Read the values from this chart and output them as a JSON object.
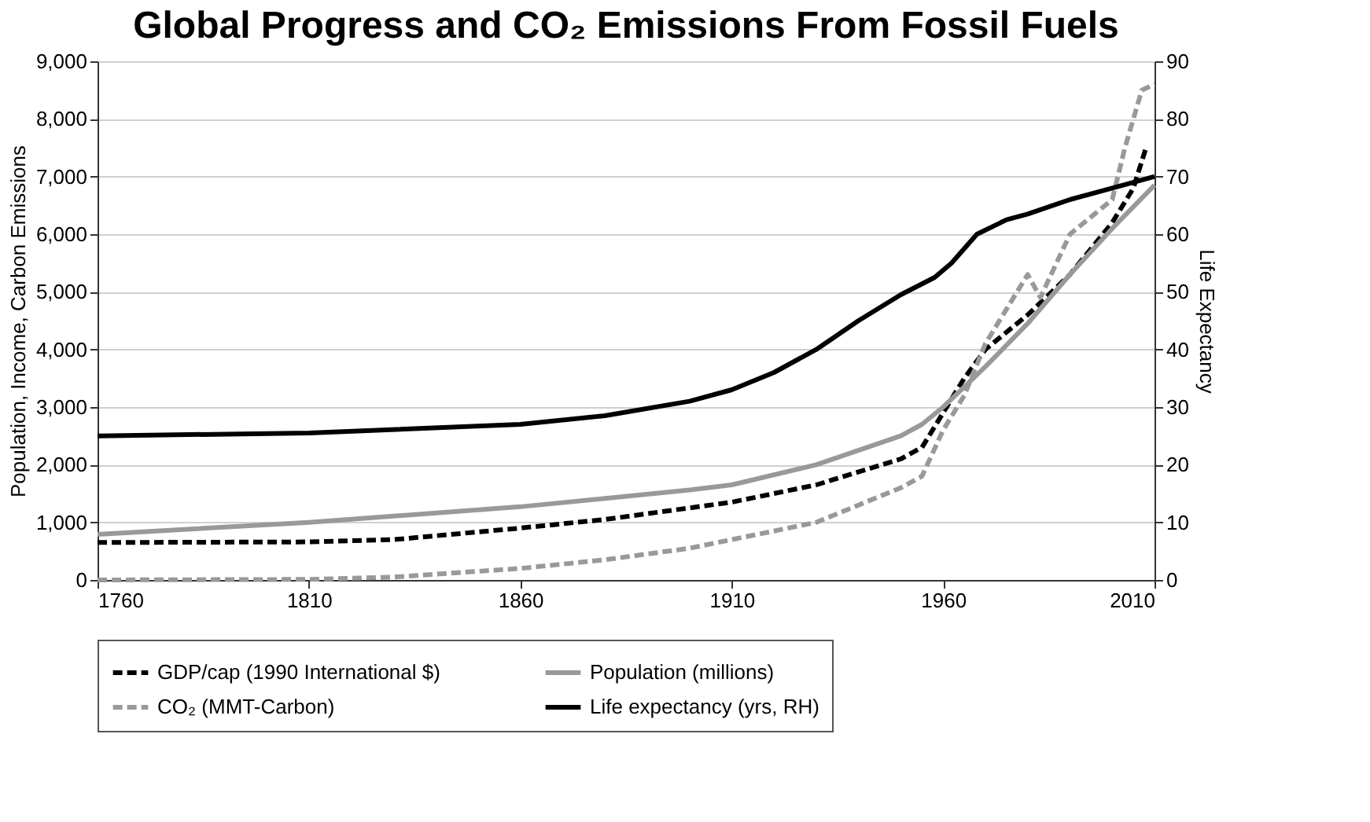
{
  "chart_data": {
    "type": "line",
    "title": "Global Progress and CO₂ Emissions From Fossil Fuels",
    "ylabel": "Population, Income, Carbon Emissions",
    "y2label": "Life Expectancy",
    "xlim": [
      1760,
      2010
    ],
    "xticks": [
      1760,
      1810,
      1860,
      1910,
      1960,
      2010
    ],
    "ylim": [
      0,
      9000
    ],
    "yticks": [
      0,
      {
        "value": 1000,
        "label": "1,000"
      },
      {
        "value": 2000,
        "label": "2,000"
      },
      {
        "value": 3000,
        "label": "3,000"
      },
      {
        "value": 4000,
        "label": "4,000"
      },
      {
        "value": 5000,
        "label": "5,000"
      },
      {
        "value": 6000,
        "label": "6,000"
      },
      {
        "value": 7000,
        "label": "7,000"
      },
      {
        "value": 8000,
        "label": "8,000"
      },
      {
        "value": 9000,
        "label": "9,000"
      }
    ],
    "y2lim": [
      0,
      90
    ],
    "y2ticks": [
      0,
      10,
      20,
      30,
      40,
      50,
      60,
      70,
      80,
      90
    ],
    "grid": "y",
    "legend": "bottom",
    "marker": "none",
    "series": [
      {
        "name": "GDP/cap (1990 International $)",
        "color": "#000000",
        "line_style": "dashed",
        "x": [
          1760,
          1810,
          1830,
          1860,
          1880,
          1900,
          1910,
          1930,
          1950,
          1955,
          1960,
          1965,
          1970,
          1980,
          1990,
          2000,
          2005,
          2008
        ],
        "values": [
          650,
          660,
          700,
          900,
          1050,
          1250,
          1350,
          1650,
          2100,
          2300,
          2900,
          3500,
          4000,
          4600,
          5300,
          6200,
          6800,
          7500
        ]
      },
      {
        "name": "Population (millions)",
        "color": "#999999",
        "line_style": "solid",
        "x": [
          1760,
          1810,
          1860,
          1900,
          1910,
          1930,
          1950,
          1955,
          1960,
          1970,
          1980,
          1990,
          2000,
          2010
        ],
        "values": [
          790,
          1000,
          1270,
          1560,
          1650,
          2000,
          2500,
          2700,
          3000,
          3700,
          4450,
          5300,
          6100,
          6850
        ]
      },
      {
        "name": "CO₂ (MMT-Carbon)",
        "color": "#999999",
        "line_style": "dashed",
        "x": [
          1760,
          1810,
          1830,
          1860,
          1880,
          1900,
          1910,
          1930,
          1950,
          1955,
          1960,
          1965,
          1970,
          1975,
          1980,
          1983,
          1990,
          2000,
          2003,
          2007,
          2010
        ],
        "values": [
          0,
          10,
          50,
          200,
          350,
          550,
          700,
          1000,
          1600,
          1800,
          2600,
          3200,
          4100,
          4700,
          5300,
          4900,
          6000,
          6600,
          7500,
          8500,
          8600
        ]
      },
      {
        "name": "Life expectancy (yrs, RH)",
        "color": "#000000",
        "line_style": "solid",
        "axis": "y2",
        "x": [
          1760,
          1810,
          1860,
          1880,
          1900,
          1910,
          1920,
          1930,
          1940,
          1950,
          1958,
          1962,
          1968,
          1975,
          1980,
          1990,
          2000,
          2010
        ],
        "values": [
          25,
          25.5,
          27,
          28.5,
          31,
          33,
          36,
          40,
          45,
          49.5,
          52.5,
          55,
          60,
          62.5,
          63.5,
          66,
          68,
          70
        ]
      }
    ]
  }
}
